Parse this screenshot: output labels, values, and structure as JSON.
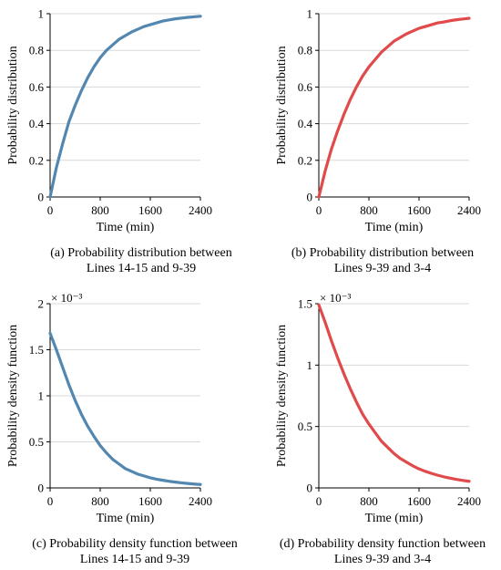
{
  "colors": {
    "blue": "#5387b0",
    "red": "#e04a4a"
  },
  "chart_data": [
    {
      "type": "line",
      "color": "#5387b0",
      "xlabel": "Time (min)",
      "ylabel": "Probability distribution",
      "xlim": [
        0,
        2400
      ],
      "ylim": [
        0,
        1
      ],
      "xticks": [
        0,
        800,
        1600,
        2400
      ],
      "yticks": [
        0,
        0.2,
        0.4,
        0.6,
        0.8,
        1
      ],
      "ytick_labels": [
        "0",
        "0.2",
        "0.4",
        "0.6",
        "0.8",
        "1"
      ],
      "multiplier": "",
      "grid": true,
      "caption": [
        "(a) Probability distribution between",
        "Lines 14-15 and 9-39"
      ],
      "series": [
        {
          "x": [
            0,
            100,
            200,
            300,
            400,
            500,
            600,
            700,
            800,
            900,
            1000,
            1100,
            1200,
            1300,
            1400,
            1500,
            1600,
            1700,
            1800,
            1900,
            2000,
            2100,
            2200,
            2300,
            2400
          ],
          "y": [
            0,
            0.16,
            0.29,
            0.41,
            0.5,
            0.58,
            0.65,
            0.71,
            0.76,
            0.8,
            0.83,
            0.86,
            0.88,
            0.9,
            0.915,
            0.93,
            0.94,
            0.95,
            0.96,
            0.966,
            0.972,
            0.976,
            0.98,
            0.983,
            0.986
          ]
        }
      ]
    },
    {
      "type": "line",
      "color": "#e04a4a",
      "xlabel": "Time (min)",
      "ylabel": "Probability distribution",
      "xlim": [
        0,
        2400
      ],
      "ylim": [
        0,
        1
      ],
      "xticks": [
        0,
        800,
        1600,
        2400
      ],
      "yticks": [
        0,
        0.2,
        0.4,
        0.6,
        0.8,
        1
      ],
      "ytick_labels": [
        "0",
        "0.2",
        "0.4",
        "0.6",
        "0.8",
        "1"
      ],
      "multiplier": "",
      "grid": true,
      "caption": [
        "(b) Probability distribution between",
        "Lines 9-39 and 3-4"
      ],
      "series": [
        {
          "x": [
            0,
            100,
            200,
            300,
            400,
            500,
            600,
            700,
            800,
            900,
            1000,
            1100,
            1200,
            1300,
            1400,
            1500,
            1600,
            1700,
            1800,
            1900,
            2000,
            2100,
            2200,
            2300,
            2400
          ],
          "y": [
            0,
            0.14,
            0.26,
            0.36,
            0.45,
            0.53,
            0.6,
            0.66,
            0.71,
            0.75,
            0.79,
            0.82,
            0.85,
            0.87,
            0.89,
            0.905,
            0.92,
            0.93,
            0.94,
            0.95,
            0.955,
            0.962,
            0.967,
            0.971,
            0.975
          ]
        }
      ]
    },
    {
      "type": "line",
      "color": "#5387b0",
      "xlabel": "Time (min)",
      "ylabel": "Probability density function",
      "xlim": [
        0,
        2400
      ],
      "ylim": [
        0,
        2
      ],
      "xticks": [
        0,
        800,
        1600,
        2400
      ],
      "yticks": [
        0,
        0.5,
        1,
        1.5,
        2
      ],
      "ytick_labels": [
        "0",
        "0.5",
        "1",
        "1.5",
        "2"
      ],
      "multiplier": "× 10⁻³",
      "grid": true,
      "caption": [
        "(c) Probability density function between",
        "Lines 14-15 and 9-39"
      ],
      "series": [
        {
          "x": [
            0,
            100,
            200,
            300,
            400,
            500,
            600,
            700,
            800,
            900,
            1000,
            1100,
            1200,
            1300,
            1400,
            1500,
            1600,
            1700,
            1800,
            1900,
            2000,
            2100,
            2200,
            2300,
            2400
          ],
          "y": [
            1.68,
            1.5,
            1.31,
            1.12,
            0.95,
            0.8,
            0.67,
            0.56,
            0.46,
            0.38,
            0.31,
            0.26,
            0.21,
            0.18,
            0.15,
            0.13,
            0.11,
            0.095,
            0.083,
            0.072,
            0.063,
            0.055,
            0.048,
            0.042,
            0.037
          ]
        }
      ]
    },
    {
      "type": "line",
      "color": "#e04a4a",
      "xlabel": "Time (min)",
      "ylabel": "Probability density function",
      "xlim": [
        0,
        2400
      ],
      "ylim": [
        0,
        1.5
      ],
      "xticks": [
        0,
        800,
        1600,
        2400
      ],
      "yticks": [
        0,
        0.5,
        1,
        1.5
      ],
      "ytick_labels": [
        "0",
        "0.5",
        "1",
        "1.5"
      ],
      "multiplier": "× 10⁻³",
      "grid": true,
      "caption": [
        "(d) Probability density function between",
        "Lines 9-39 and 3-4"
      ],
      "series": [
        {
          "x": [
            0,
            100,
            200,
            300,
            400,
            500,
            600,
            700,
            800,
            900,
            1000,
            1100,
            1200,
            1300,
            1400,
            1500,
            1600,
            1700,
            1800,
            1900,
            2000,
            2100,
            2200,
            2300,
            2400
          ],
          "y": [
            1.49,
            1.35,
            1.2,
            1.06,
            0.93,
            0.81,
            0.7,
            0.6,
            0.52,
            0.45,
            0.38,
            0.33,
            0.28,
            0.24,
            0.21,
            0.18,
            0.155,
            0.135,
            0.118,
            0.103,
            0.09,
            0.079,
            0.069,
            0.061,
            0.054
          ]
        }
      ]
    }
  ]
}
